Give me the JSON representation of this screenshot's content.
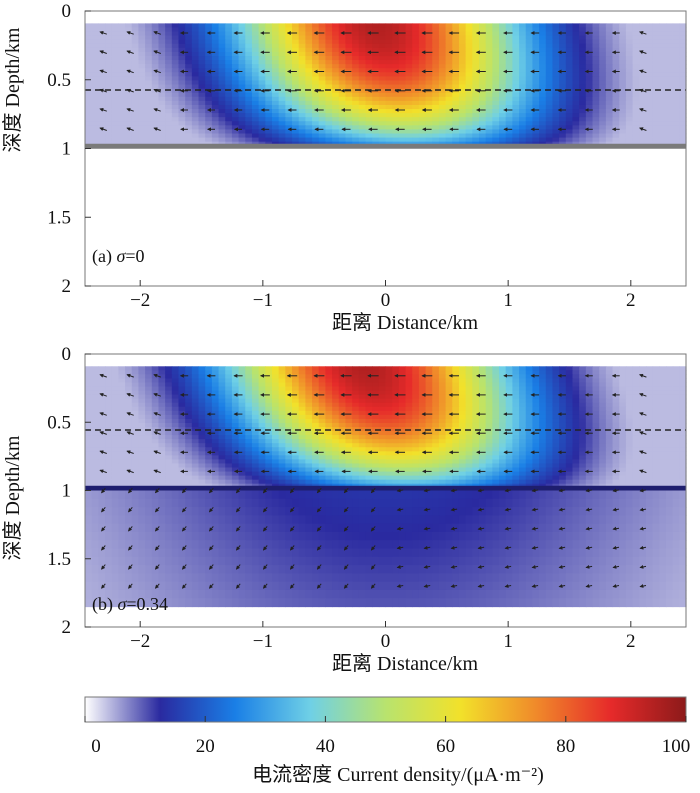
{
  "chart_data": [
    {
      "type": "heatmap",
      "panel_label": "(a) σ=0",
      "label_prefix": "(a) ",
      "sigma_symbol": "σ",
      "sigma_value": "=0",
      "xlabel": "距离 Distance/km",
      "ylabel": "深度 Depth/km",
      "xlim": [
        -2.45,
        2.45
      ],
      "ylim": [
        0,
        2
      ],
      "xticks": [
        "-2",
        "-1",
        "0",
        "1",
        "2"
      ],
      "yticks": [
        "0",
        "0.5",
        "1",
        "1.5",
        "2"
      ],
      "dashed_line_depth": 0.52,
      "layer_bottom_depth": 0.98,
      "lower_layer_current": 0,
      "peak_center_x": 0.2,
      "peak_center_x_at_top": -0.1,
      "peak_current": 95
    },
    {
      "type": "heatmap",
      "panel_label": "(b) σ=0.34",
      "label_prefix": "(b) ",
      "sigma_symbol": "σ",
      "sigma_value": "=0.34",
      "xlabel": "距离 Distance/km",
      "ylabel": "深度 Depth/km",
      "xlim": [
        -2.45,
        2.45
      ],
      "ylim": [
        0,
        2
      ],
      "xticks": [
        "-2",
        "-1",
        "0",
        "1",
        "2"
      ],
      "yticks": [
        "0",
        "0.5",
        "1",
        "1.5",
        "2"
      ],
      "dashed_line_depth": 0.52,
      "layer_bottom_depth": 0.98,
      "lower_layer_current": 12,
      "peak_center_x": 0.2,
      "peak_center_x_at_top": -0.2,
      "peak_current": 95
    }
  ],
  "colorbar": {
    "label": "电流密度 Current density/(μA·m⁻²)",
    "ticks": [
      "0",
      "20",
      "40",
      "60",
      "80",
      "100"
    ],
    "range": [
      0,
      100
    ],
    "colors": [
      "#ffffff",
      "#2a2aa0",
      "#1a7fe6",
      "#6fd0e6",
      "#b8e36e",
      "#f2e12a",
      "#f08a2a",
      "#e62a2a",
      "#8c1a1a"
    ]
  }
}
